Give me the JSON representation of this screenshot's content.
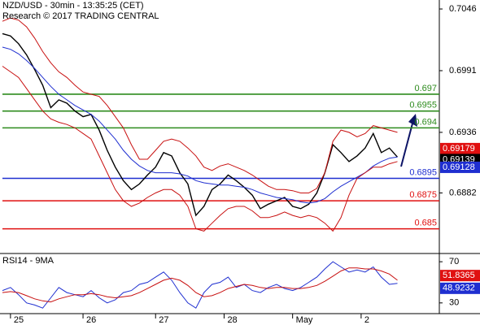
{
  "chart_data": {
    "type": "line",
    "title": "NZD/USD - 30min - 13:35:25 (CET)",
    "subtitle": "Research © 2017 TRADING CENTRAL",
    "ylim": [
      0.6828,
      0.7054
    ],
    "yticks": [
      0.7046,
      0.6991,
      0.6936,
      0.6882
    ],
    "xlim": [
      -0.3,
      54.2
    ],
    "xticks": [
      {
        "value": 1,
        "label": "25"
      },
      {
        "value": 10,
        "label": "26"
      },
      {
        "value": 19,
        "label": "27"
      },
      {
        "value": 27.5,
        "label": "28"
      },
      {
        "value": 36,
        "label": "May"
      },
      {
        "value": 44.5,
        "label": "2"
      }
    ],
    "levels": [
      {
        "value": 0.697,
        "color": "#2e8b1e"
      },
      {
        "value": 0.6955,
        "color": "#2e8b1e"
      },
      {
        "value": 0.694,
        "color": "#2e8b1e"
      },
      {
        "value": 0.6895,
        "color": "#1f2fd0"
      },
      {
        "value": 0.6875,
        "color": "#e01010"
      },
      {
        "value": 0.685,
        "color": "#e01010"
      }
    ],
    "series": [
      {
        "name": "price",
        "color": "#000000",
        "values": [
          0.7024,
          0.7022,
          0.7015,
          0.7005,
          0.6992,
          0.6978,
          0.6958,
          0.6965,
          0.6962,
          0.6955,
          0.695,
          0.6952,
          0.6938,
          0.692,
          0.6905,
          0.6893,
          0.6885,
          0.689,
          0.6898,
          0.6905,
          0.6918,
          0.6915,
          0.69,
          0.689,
          0.6862,
          0.687,
          0.6885,
          0.689,
          0.6898,
          0.6893,
          0.6887,
          0.688,
          0.6868,
          0.6872,
          0.6875,
          0.6878,
          0.687,
          0.6868,
          0.6872,
          0.6882,
          0.69,
          0.6925,
          0.6918,
          0.691,
          0.6915,
          0.6922,
          0.6935,
          0.6918,
          0.6922,
          0.6914
        ]
      },
      {
        "name": "ma",
        "color": "#1f2fd0",
        "values": [
          0.7012,
          0.701,
          0.7006,
          0.7,
          0.6993,
          0.6985,
          0.6977,
          0.697,
          0.6965,
          0.696,
          0.6956,
          0.6952,
          0.6946,
          0.6938,
          0.693,
          0.692,
          0.6912,
          0.6906,
          0.6902,
          0.69,
          0.69,
          0.69,
          0.6899,
          0.6897,
          0.6893,
          0.6891,
          0.689,
          0.6889,
          0.6889,
          0.6888,
          0.6887,
          0.6885,
          0.6882,
          0.688,
          0.6878,
          0.6877,
          0.6876,
          0.6874,
          0.6873,
          0.6874,
          0.6877,
          0.6883,
          0.6888,
          0.6892,
          0.6896,
          0.69,
          0.6906,
          0.691,
          0.6913,
          0.6914
        ]
      },
      {
        "name": "upper",
        "color": "#c81010",
        "values": [
          0.7035,
          0.7038,
          0.7036,
          0.703,
          0.702,
          0.7008,
          0.6998,
          0.699,
          0.6985,
          0.6978,
          0.6972,
          0.697,
          0.6968,
          0.696,
          0.695,
          0.694,
          0.6925,
          0.6912,
          0.6912,
          0.692,
          0.6928,
          0.693,
          0.6928,
          0.6922,
          0.6915,
          0.6905,
          0.6902,
          0.6906,
          0.6908,
          0.6905,
          0.6902,
          0.6898,
          0.6893,
          0.6888,
          0.6885,
          0.6885,
          0.6884,
          0.6882,
          0.6882,
          0.6886,
          0.69,
          0.6928,
          0.6938,
          0.6936,
          0.6932,
          0.6935,
          0.6942,
          0.694,
          0.6938,
          0.6936
        ]
      },
      {
        "name": "lower",
        "color": "#c81010",
        "values": [
          0.6995,
          0.699,
          0.6985,
          0.6975,
          0.6965,
          0.6955,
          0.6948,
          0.6945,
          0.6943,
          0.694,
          0.6935,
          0.693,
          0.6915,
          0.69,
          0.6885,
          0.6875,
          0.687,
          0.6873,
          0.6878,
          0.6882,
          0.6885,
          0.6885,
          0.688,
          0.687,
          0.685,
          0.6848,
          0.6855,
          0.6862,
          0.6868,
          0.687,
          0.687,
          0.6866,
          0.686,
          0.686,
          0.6862,
          0.6865,
          0.6862,
          0.686,
          0.6862,
          0.686,
          0.6855,
          0.6848,
          0.686,
          0.688,
          0.6895,
          0.69,
          0.6905,
          0.6905,
          0.6908,
          0.691
        ]
      }
    ],
    "last_labels": [
      {
        "value": 0.69179,
        "color": "#e01010"
      },
      {
        "value": 0.69139,
        "color": "#000000"
      },
      {
        "value": 0.69128,
        "color": "#1f2fd0"
      }
    ],
    "rsi": {
      "title": "RSI14 - 9MA",
      "ylim": [
        19.6,
        77.2
      ],
      "yticks": [
        70,
        30
      ],
      "series": [
        {
          "name": "rsi",
          "color": "#1f2fd0",
          "values": [
            42,
            45,
            38,
            30,
            28,
            25,
            35,
            45,
            40,
            38,
            36,
            42,
            35,
            30,
            33,
            40,
            42,
            48,
            50,
            55,
            60,
            52,
            40,
            30,
            25,
            40,
            48,
            50,
            55,
            45,
            48,
            42,
            40,
            45,
            48,
            44,
            42,
            45,
            50,
            55,
            63,
            70,
            65,
            60,
            62,
            60,
            65,
            55,
            48,
            49
          ]
        },
        {
          "name": "ma",
          "color": "#c81010",
          "values": [
            40,
            41,
            40,
            37,
            34,
            32,
            31,
            34,
            36,
            38,
            38,
            39,
            38,
            36,
            35,
            36,
            37,
            40,
            44,
            48,
            52,
            54,
            52,
            47,
            40,
            36,
            37,
            40,
            44,
            46,
            48,
            47,
            45,
            44,
            45,
            45,
            44,
            44,
            45,
            47,
            51,
            56,
            61,
            64,
            64,
            63,
            63,
            61,
            58,
            52
          ]
        }
      ],
      "last_labels": [
        {
          "value": 51.8365,
          "color": "#e01010"
        },
        {
          "value": 48.9232,
          "color": "#1f2fd0"
        }
      ]
    }
  }
}
